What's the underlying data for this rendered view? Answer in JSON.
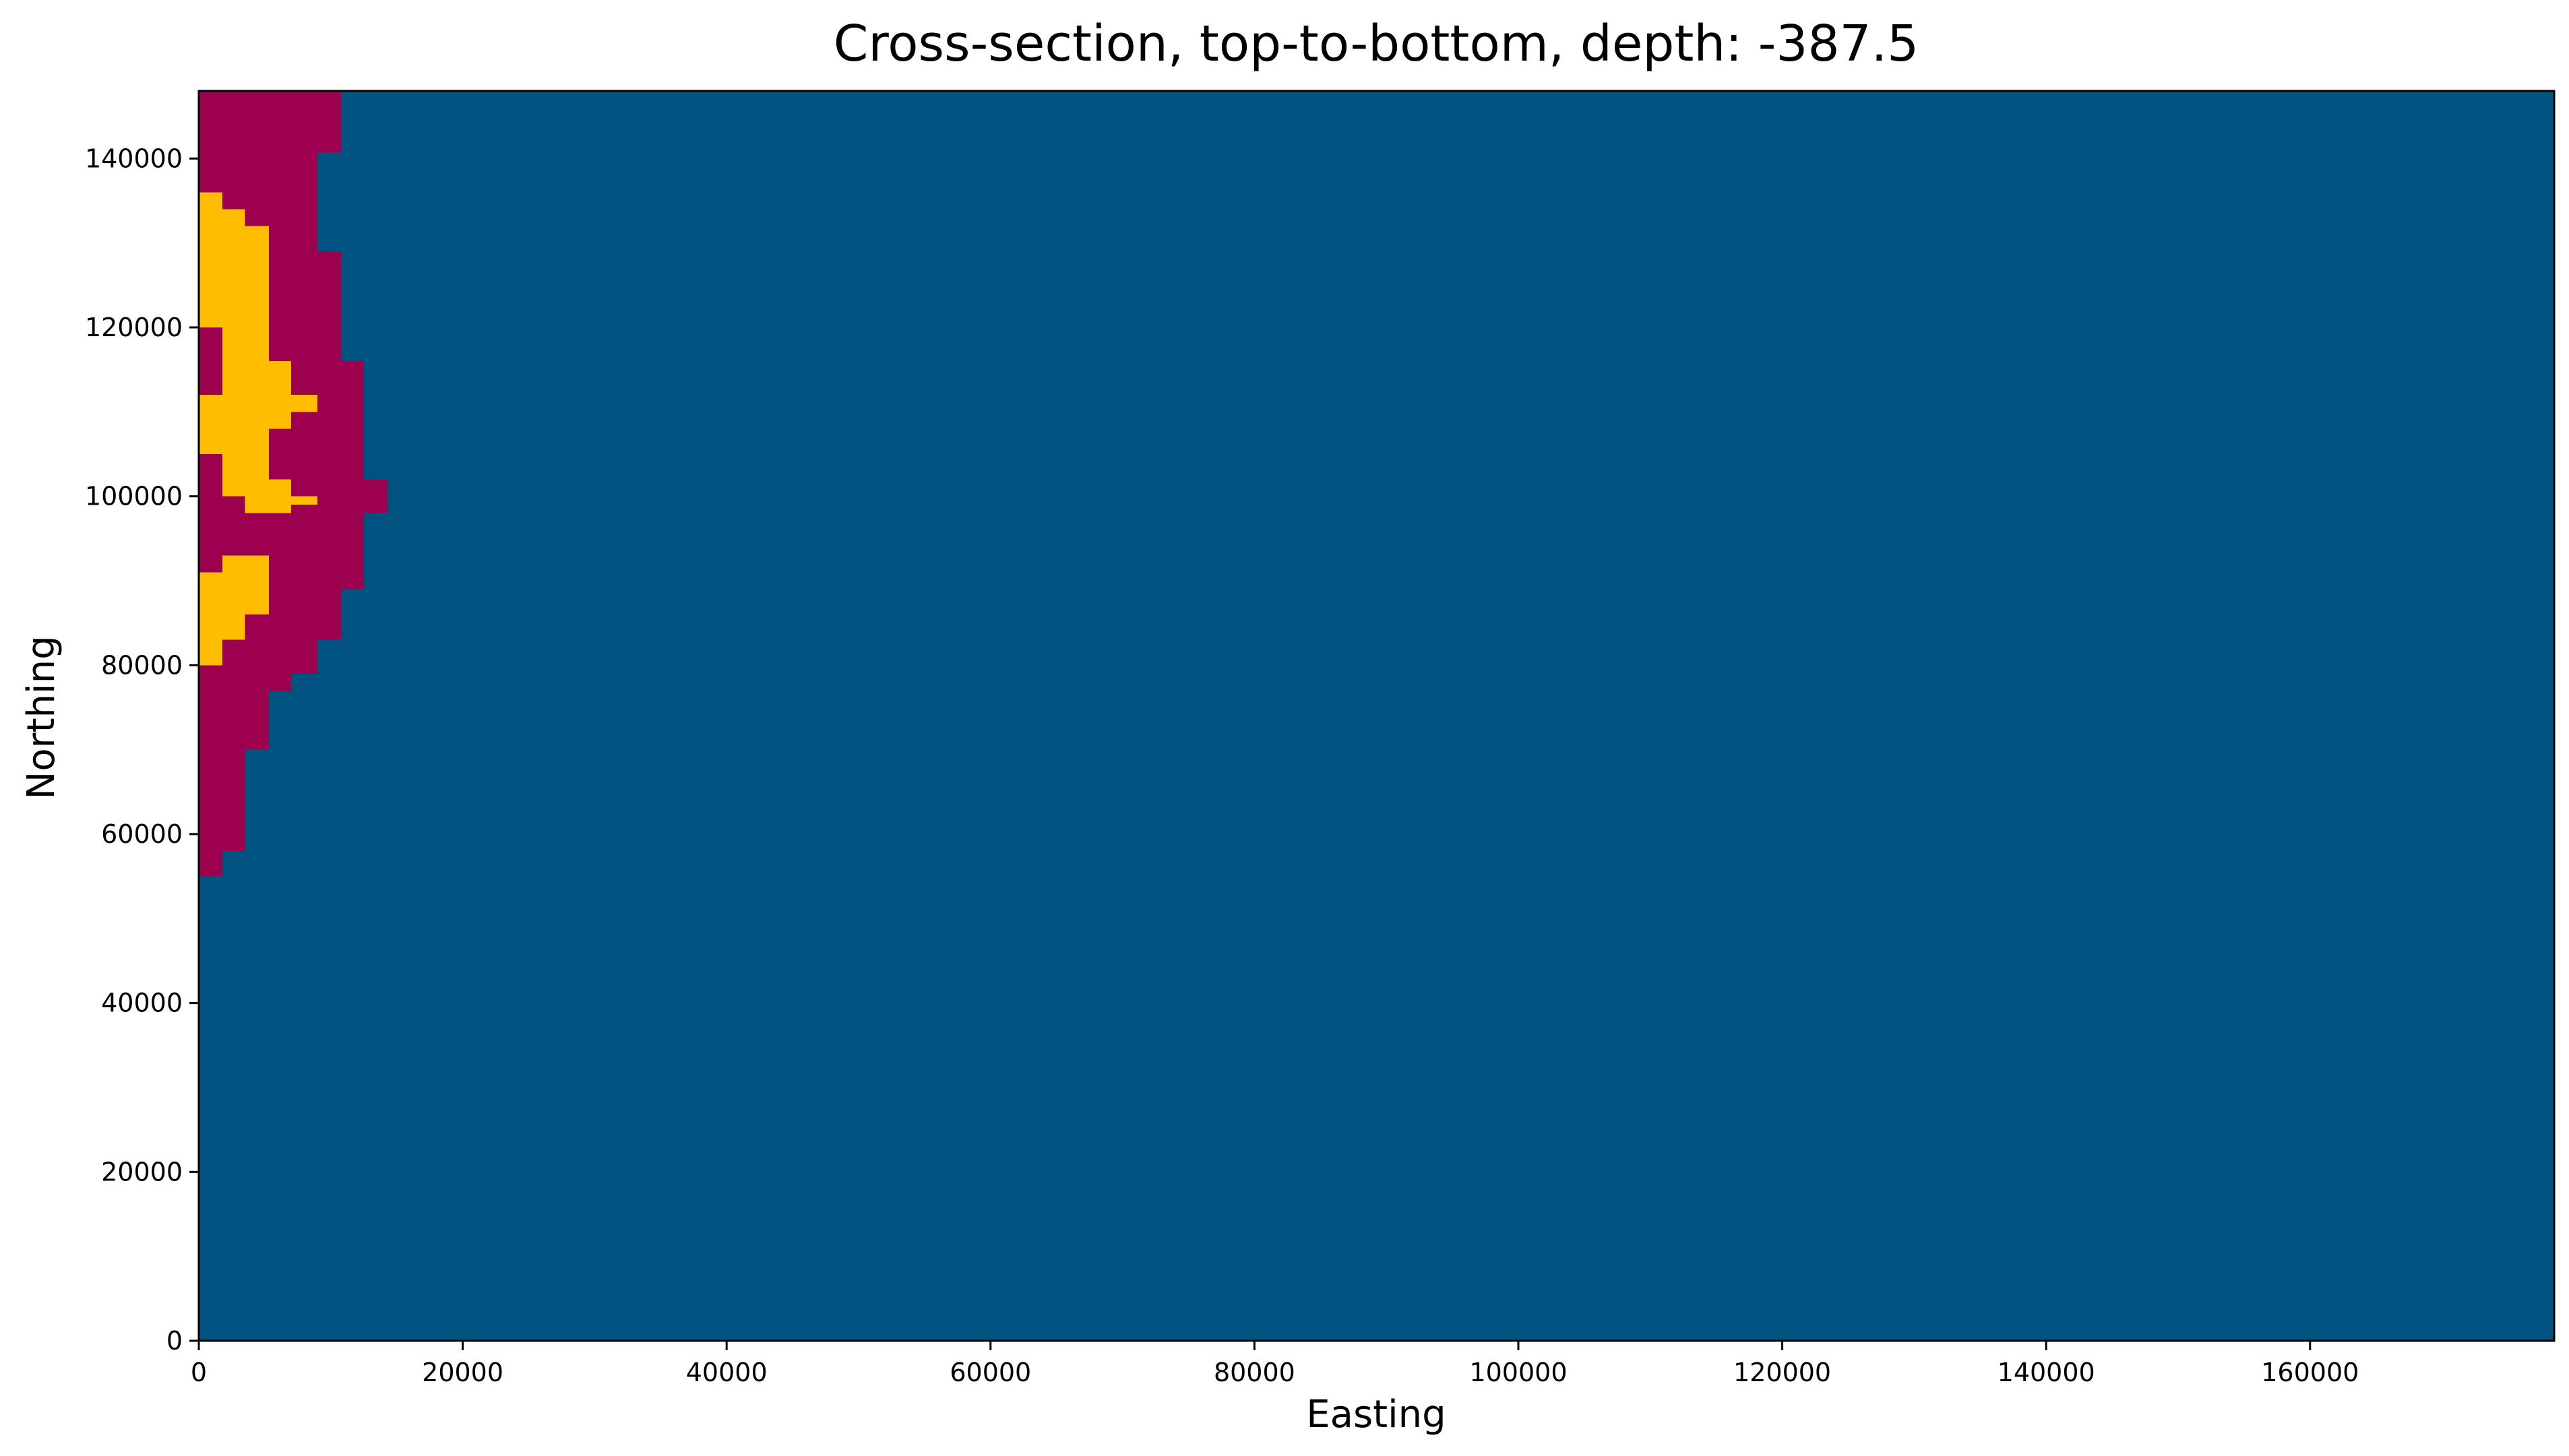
{
  "chart_data": {
    "type": "heatmap",
    "title": "Cross-section, top-to-bottom, depth: -387.5",
    "xlabel": "Easting",
    "ylabel": "Northing",
    "xlim": [
      0,
      178500
    ],
    "ylim": [
      0,
      148000
    ],
    "grid": false,
    "xticks": [
      "0",
      "20000",
      "40000",
      "60000",
      "80000",
      "100000",
      "120000",
      "140000",
      "160000"
    ],
    "yticks": [
      "0",
      "20000",
      "40000",
      "60000",
      "80000",
      "100000",
      "120000",
      "140000"
    ],
    "colors": {
      "background_unit": "#005380",
      "magenta_unit": "#9e0050",
      "yellow_unit": "#ffbd00"
    },
    "regions": [
      {
        "unit": "magenta_unit",
        "y": [
          140700,
          148000
        ],
        "x": [
          0,
          10800
        ]
      },
      {
        "unit": "magenta_unit",
        "y": [
          136000,
          140700
        ],
        "x": [
          0,
          9000
        ]
      },
      {
        "unit": "magenta_unit",
        "y": [
          129000,
          136000
        ],
        "x": [
          0,
          9000
        ]
      },
      {
        "unit": "magenta_unit",
        "y": [
          116000,
          129000
        ],
        "x": [
          0,
          10800
        ]
      },
      {
        "unit": "magenta_unit",
        "y": [
          102000,
          116000
        ],
        "x": [
          0,
          12500
        ]
      },
      {
        "unit": "magenta_unit",
        "y": [
          98000,
          102000
        ],
        "x": [
          0,
          14300
        ]
      },
      {
        "unit": "magenta_unit",
        "y": [
          89000,
          98000
        ],
        "x": [
          0,
          12500
        ]
      },
      {
        "unit": "magenta_unit",
        "y": [
          83000,
          89000
        ],
        "x": [
          0,
          10800
        ]
      },
      {
        "unit": "magenta_unit",
        "y": [
          79000,
          83000
        ],
        "x": [
          0,
          9000
        ]
      },
      {
        "unit": "magenta_unit",
        "y": [
          77000,
          79000
        ],
        "x": [
          0,
          7000
        ]
      },
      {
        "unit": "magenta_unit",
        "y": [
          70000,
          77000
        ],
        "x": [
          0,
          5300
        ]
      },
      {
        "unit": "magenta_unit",
        "y": [
          58000,
          70000
        ],
        "x": [
          0,
          3500
        ]
      },
      {
        "unit": "magenta_unit",
        "y": [
          55000,
          58000
        ],
        "x": [
          0,
          1800
        ]
      },
      {
        "unit": "yellow_unit",
        "y": [
          134000,
          136000
        ],
        "x": [
          0,
          1800
        ]
      },
      {
        "unit": "yellow_unit",
        "y": [
          132000,
          134000
        ],
        "x": [
          0,
          3500
        ]
      },
      {
        "unit": "yellow_unit",
        "y": [
          120000,
          132000
        ],
        "x": [
          0,
          5300
        ]
      },
      {
        "unit": "yellow_unit",
        "y": [
          116000,
          120000
        ],
        "x": [
          1800,
          5300
        ]
      },
      {
        "unit": "yellow_unit",
        "y": [
          112000,
          116000
        ],
        "x": [
          1800,
          7000
        ]
      },
      {
        "unit": "yellow_unit",
        "y": [
          110000,
          112000
        ],
        "x": [
          0,
          9000
        ]
      },
      {
        "unit": "yellow_unit",
        "y": [
          108000,
          110000
        ],
        "x": [
          0,
          7000
        ]
      },
      {
        "unit": "yellow_unit",
        "y": [
          105000,
          108000
        ],
        "x": [
          0,
          5300
        ]
      },
      {
        "unit": "yellow_unit",
        "y": [
          102000,
          105000
        ],
        "x": [
          1800,
          5300
        ]
      },
      {
        "unit": "yellow_unit",
        "y": [
          100000,
          102000
        ],
        "x": [
          1800,
          7000
        ]
      },
      {
        "unit": "yellow_unit",
        "y": [
          99000,
          100000
        ],
        "x": [
          3500,
          9000
        ]
      },
      {
        "unit": "yellow_unit",
        "y": [
          98000,
          99000
        ],
        "x": [
          3500,
          7000
        ]
      },
      {
        "unit": "yellow_unit",
        "y": [
          91000,
          93000
        ],
        "x": [
          1800,
          5300
        ]
      },
      {
        "unit": "yellow_unit",
        "y": [
          86000,
          91000
        ],
        "x": [
          0,
          5300
        ]
      },
      {
        "unit": "yellow_unit",
        "y": [
          83000,
          86000
        ],
        "x": [
          0,
          3500
        ]
      },
      {
        "unit": "yellow_unit",
        "y": [
          80000,
          83000
        ],
        "x": [
          0,
          1800
        ]
      }
    ]
  }
}
